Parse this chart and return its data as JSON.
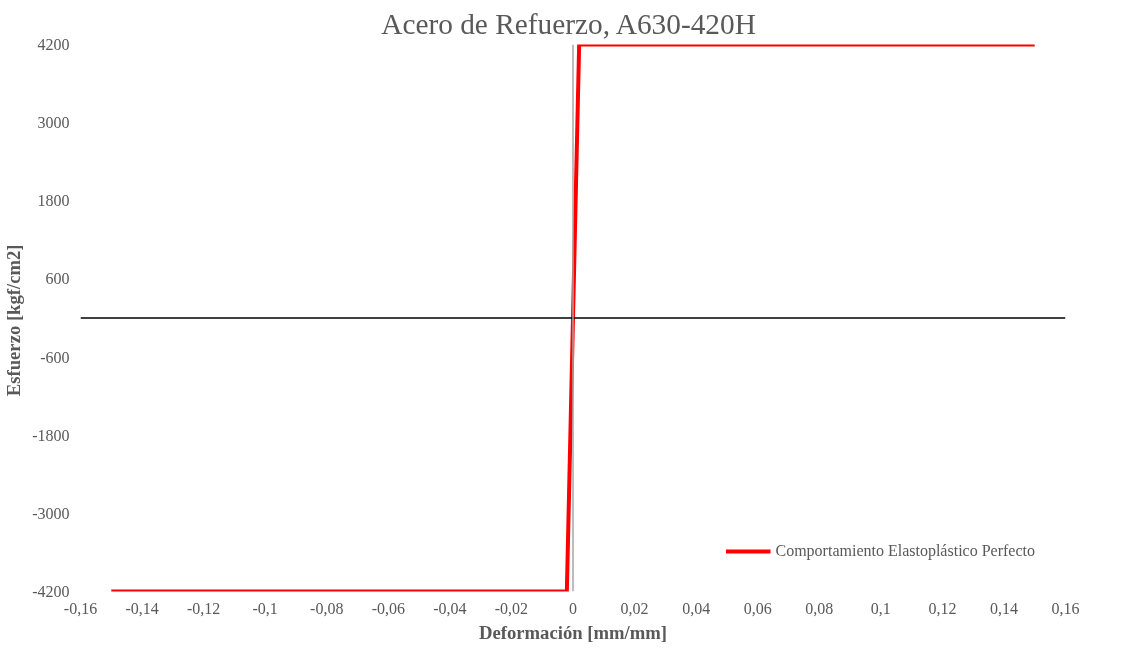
{
  "chart_data": {
    "type": "line",
    "title": "Acero  de Refuerzo, A630-420H",
    "xlabel": "Deformación [mm/mm]",
    "ylabel": "Esfuerzo  [kgf/cm2]",
    "series": [
      {
        "name": "Comportamiento Elastoplástico Perfecto",
        "color": "#ff0000",
        "x": [
          -0.15,
          -0.002,
          0.002,
          0.15
        ],
        "values": [
          -4200,
          -4200,
          4200,
          4200
        ]
      }
    ],
    "xlim": [
      -0.16,
      0.16
    ],
    "xticks": [
      {
        "value": -0.16,
        "label": "-0,16"
      },
      {
        "value": -0.14,
        "label": "-0,14"
      },
      {
        "value": -0.12,
        "label": "-0,12"
      },
      {
        "value": -0.1,
        "label": "-0,1"
      },
      {
        "value": -0.08,
        "label": "-0,08"
      },
      {
        "value": -0.06,
        "label": "-0,06"
      },
      {
        "value": -0.04,
        "label": "-0,04"
      },
      {
        "value": -0.02,
        "label": "-0,02"
      },
      {
        "value": 0,
        "label": "0"
      },
      {
        "value": 0.02,
        "label": "0,02"
      },
      {
        "value": 0.04,
        "label": "0,04"
      },
      {
        "value": 0.06,
        "label": "0,06"
      },
      {
        "value": 0.08,
        "label": "0,08"
      },
      {
        "value": 0.1,
        "label": "0,1"
      },
      {
        "value": 0.12,
        "label": "0,12"
      },
      {
        "value": 0.14,
        "label": "0,14"
      },
      {
        "value": 0.16,
        "label": "0,16"
      }
    ],
    "ylim": [
      -4200,
      4200
    ],
    "yticks": [
      -4200,
      -3000,
      -1800,
      -600,
      600,
      1800,
      3000,
      4200
    ],
    "ref_lines": [
      {
        "axis": "y",
        "value": 0,
        "color": "#000000"
      },
      {
        "axis": "x",
        "value": 0,
        "color": "#a6a6a6"
      }
    ],
    "grid": false,
    "legend": "bottom right",
    "marker": "none",
    "line_style": "solid"
  }
}
